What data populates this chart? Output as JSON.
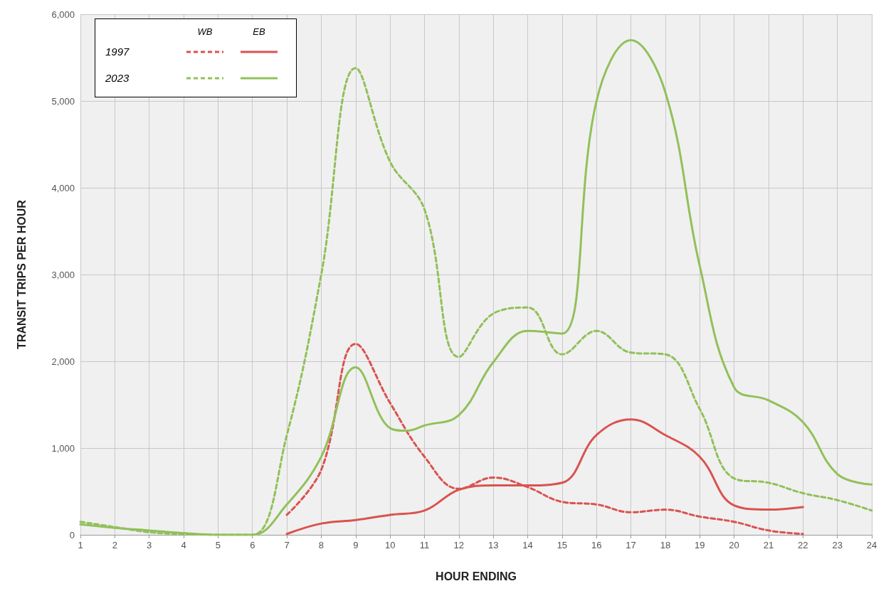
{
  "chart_data": {
    "type": "line",
    "xlabel": "HOUR ENDING",
    "ylabel": "TRANSIT TRIPS PER HOUR",
    "xlim": [
      1,
      24
    ],
    "xticks": [
      1,
      2,
      3,
      4,
      5,
      6,
      7,
      8,
      9,
      10,
      11,
      12,
      13,
      14,
      15,
      16,
      17,
      18,
      19,
      20,
      21,
      22,
      23,
      24
    ],
    "ylim": [
      0,
      6000
    ],
    "yticks": [
      0,
      {
        "value": 1000,
        "label": "1,000"
      },
      {
        "value": 2000,
        "label": "2,000"
      },
      {
        "value": 3000,
        "label": "3,000"
      },
      {
        "value": 4000,
        "label": "4,000"
      },
      {
        "value": 5000,
        "label": "5,000"
      },
      {
        "value": 6000,
        "label": "6,000"
      }
    ],
    "grid": true,
    "marker": "none",
    "annotations": [
      "WB",
      "EB",
      "1997",
      "2023"
    ],
    "series": [
      {
        "color": "#d9534f",
        "line_style": "dashed",
        "x": [
          7,
          8,
          9,
          10,
          11,
          12,
          13,
          14,
          15,
          16,
          17,
          18,
          19,
          20,
          21,
          22
        ],
        "values": [
          230,
          750,
          2200,
          1520,
          900,
          530,
          660,
          550,
          380,
          350,
          260,
          290,
          210,
          150,
          50,
          10
        ]
      },
      {
        "color": "#d9534f",
        "line_style": "solid",
        "x": [
          7,
          8,
          9,
          10,
          11,
          12,
          13,
          14,
          15,
          16,
          17,
          18,
          19,
          20,
          21,
          22
        ],
        "values": [
          10,
          130,
          170,
          230,
          280,
          520,
          570,
          570,
          600,
          1150,
          1330,
          1150,
          900,
          340,
          290,
          320
        ]
      },
      {
        "color": "#92c05a",
        "line_style": "dashed",
        "x": [
          1,
          2,
          3,
          4,
          5,
          6,
          7,
          8,
          9,
          10,
          11,
          12,
          13,
          14,
          15,
          16,
          17,
          18,
          19,
          20,
          21,
          22,
          23,
          24
        ],
        "values": [
          150,
          90,
          30,
          10,
          0,
          0,
          1150,
          3000,
          5380,
          4300,
          3750,
          2050,
          2550,
          2620,
          2080,
          2350,
          2100,
          2080,
          1450,
          650,
          600,
          480,
          400,
          280
        ]
      },
      {
        "color": "#92c05a",
        "line_style": "solid",
        "x": [
          1,
          2,
          3,
          4,
          5,
          6,
          7,
          8,
          9,
          10,
          10.5,
          11,
          12,
          13,
          14,
          15,
          16,
          17,
          18,
          19,
          20,
          21,
          22,
          23,
          24
        ],
        "values": [
          120,
          80,
          50,
          20,
          0,
          0,
          350,
          900,
          1930,
          1230,
          1200,
          1260,
          1380,
          1990,
          2350,
          2320,
          5000,
          5700,
          5100,
          3100,
          1700,
          1550,
          1300,
          700,
          580
        ]
      }
    ]
  }
}
